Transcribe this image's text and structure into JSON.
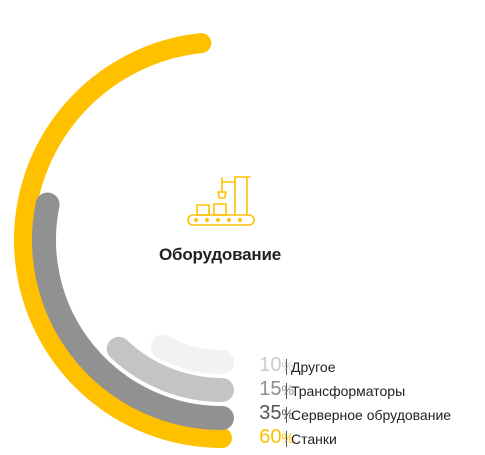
{
  "chart_data": {
    "type": "radial-bar",
    "title": "Оборудование",
    "max_percent": 100,
    "series": [
      {
        "name": "Другое",
        "value": 10,
        "color": "#f2f2f2",
        "label_color": "#cccccc"
      },
      {
        "name": "Трансформаторы",
        "value": 15,
        "color": "#c4c4c4",
        "label_color": "#8f8f8f"
      },
      {
        "name": "Серверное обрудование",
        "value": 35,
        "color": "#919191",
        "label_color": "#555555"
      },
      {
        "name": "Станки",
        "value": 60,
        "color": "#ffc000",
        "label_color": "#ffc000"
      }
    ],
    "legend": "bottom-right"
  },
  "center_icon": "conveyor-crane-icon",
  "percent_sign": "%",
  "accent_color": "#ffc000"
}
